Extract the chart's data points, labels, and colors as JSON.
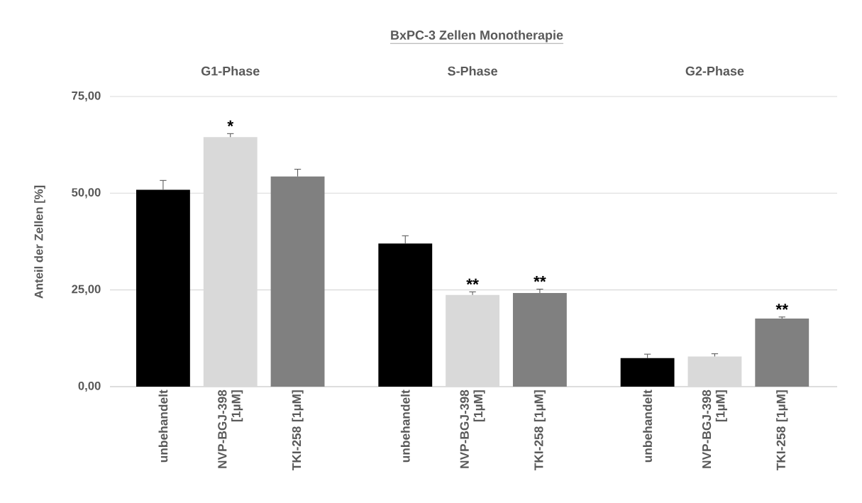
{
  "chart_data": {
    "type": "bar",
    "title": "BxPC-3 Zellen Monotherapie",
    "ylabel": "Anteil der Zellen [%]",
    "categories": [
      "unbehandelt",
      "NVP-BGJ-398 [1µM]",
      "TKI-258 [1µM]",
      "unbehandelt",
      "NVP-BGJ-398 [1µM]",
      "TKI-258 [1µM]",
      "unbehandelt",
      "NVP-BGJ-398 [1µM]",
      "TKI-258 [1µM]"
    ],
    "values": [
      50.9,
      64.5,
      54.3,
      37.0,
      23.7,
      24.2,
      7.4,
      7.8,
      17.6
    ],
    "errors": [
      2.4,
      0.9,
      1.9,
      2.0,
      0.8,
      1.0,
      1.0,
      0.7,
      0.4
    ],
    "colors": [
      "#000000",
      "#d9d9d9",
      "#808080",
      "#000000",
      "#d9d9d9",
      "#808080",
      "#000000",
      "#d9d9d9",
      "#808080"
    ],
    "value_labels": [
      null,
      "*",
      null,
      null,
      "**",
      "**",
      null,
      null,
      "**"
    ],
    "annotations": [
      "G1-Phase",
      "S-Phase",
      "G2-Phase"
    ],
    "ylim": [
      0,
      75
    ],
    "yticks": [
      {
        "value": 0,
        "label": "0,00"
      },
      {
        "value": 25,
        "label": "25,00"
      },
      {
        "value": 50,
        "label": "50,00"
      },
      {
        "value": 75,
        "label": "75,00"
      }
    ],
    "grid": "y"
  }
}
